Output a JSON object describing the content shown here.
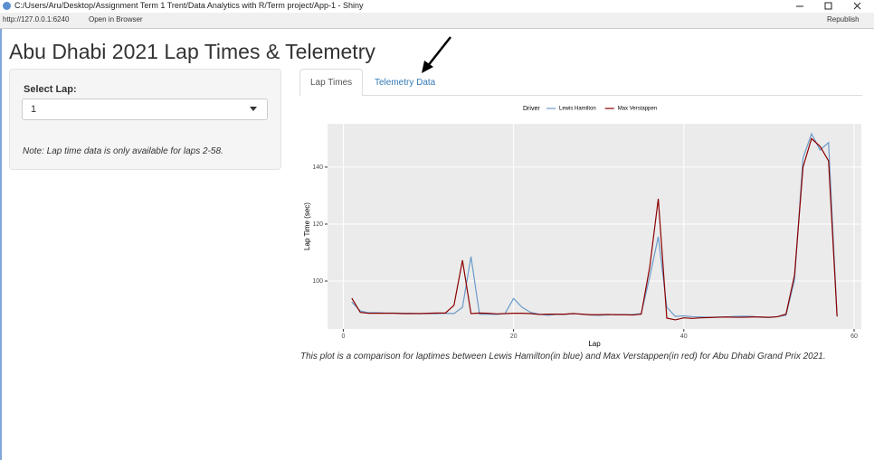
{
  "window": {
    "title": "C:/Users/Aru/Desktop/Assignment Term 1 Trent/Data Analytics with R/Term project/App-1 - Shiny",
    "url": "http://127.0.0.1:6240",
    "open_in_browser": "Open in Browser",
    "republish": "Republish"
  },
  "app": {
    "title": "Abu Dhabi 2021 Lap Times & Telemetry",
    "sidebar": {
      "label": "Select Lap:",
      "selected": "1",
      "note": "Note: Lap time data is only available for laps 2-58."
    },
    "tabs": [
      "Lap Times",
      "Telemetry Data"
    ],
    "caption": "This plot is a comparison for laptimes between Lewis Hamilton(in blue) and Max Verstappen(in red) for Abu Dhabi Grand Prix 2021."
  },
  "chart_data": {
    "type": "line",
    "x_label": "Lap",
    "y_label": "Lap Time (sec)",
    "legend_title": "Driver",
    "legend_position": "top",
    "x": [
      1,
      2,
      3,
      4,
      5,
      6,
      7,
      8,
      9,
      10,
      11,
      12,
      13,
      14,
      15,
      16,
      17,
      18,
      19,
      20,
      21,
      22,
      23,
      24,
      25,
      26,
      27,
      28,
      29,
      30,
      31,
      32,
      33,
      34,
      35,
      36,
      37,
      38,
      39,
      40,
      41,
      42,
      43,
      44,
      45,
      46,
      47,
      48,
      49,
      50,
      51,
      52,
      53,
      54,
      55,
      56,
      57,
      58
    ],
    "series": [
      {
        "name": "Lewis Hamilton",
        "color": "#6b9bc8",
        "values": [
          92.7,
          89.5,
          88.9,
          88.9,
          88.8,
          88.8,
          88.7,
          88.7,
          88.6,
          88.6,
          88.6,
          88.7,
          88.6,
          90.8,
          108.6,
          88.4,
          88.4,
          88.3,
          88.6,
          93.9,
          90.8,
          89.0,
          88.4,
          88.0,
          88.3,
          88.3,
          88.6,
          88.4,
          88.1,
          88.0,
          88.1,
          88.3,
          88.2,
          88.3,
          88.6,
          101.5,
          115.6,
          90.8,
          87.6,
          87.8,
          87.5,
          87.4,
          87.3,
          87.4,
          87.4,
          87.6,
          87.7,
          87.6,
          87.3,
          87.2,
          87.5,
          88.0,
          100.3,
          143.2,
          151.7,
          146.0,
          148.6,
          87.6
        ]
      },
      {
        "name": "Max Verstappen",
        "color": "#8b0000",
        "values": [
          94.0,
          89.0,
          88.7,
          88.7,
          88.7,
          88.7,
          88.6,
          88.6,
          88.6,
          88.7,
          88.8,
          88.8,
          91.5,
          107.3,
          88.6,
          88.8,
          88.7,
          88.5,
          88.6,
          88.7,
          88.7,
          88.6,
          88.3,
          88.4,
          88.4,
          88.4,
          88.6,
          88.4,
          88.2,
          88.2,
          88.3,
          88.2,
          88.2,
          88.1,
          88.4,
          105.0,
          128.9,
          87.0,
          86.4,
          87.1,
          86.9,
          87.1,
          87.2,
          87.3,
          87.4,
          87.3,
          87.3,
          87.4,
          87.4,
          87.3,
          87.5,
          88.4,
          102.0,
          140.0,
          150.0,
          147.3,
          142.2,
          87.6
        ]
      }
    ],
    "xlim": [
      -1.85,
      60.85
    ],
    "xticks": [
      0,
      20,
      40,
      60
    ],
    "ylim": [
      83.2,
      155.2
    ],
    "yticks": [
      100,
      120,
      140
    ],
    "grid": true
  }
}
